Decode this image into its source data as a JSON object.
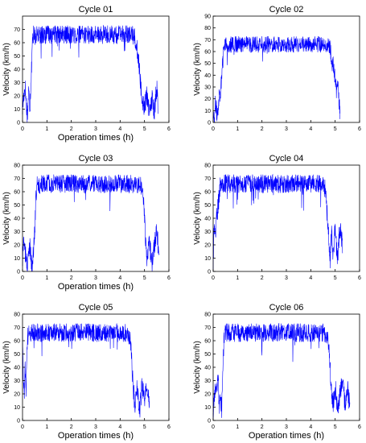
{
  "colors": {
    "line": "#0000ff",
    "axis": "#000000",
    "background": "#ffffff"
  },
  "chart_data": [
    {
      "type": "line",
      "title": "Cycle 01",
      "xlabel": "Operation times (h)",
      "ylabel": "Velocity (km/h)",
      "xlim": [
        0,
        6
      ],
      "ylim": [
        0,
        80
      ],
      "xticks": [
        0,
        1,
        2,
        3,
        4,
        5,
        6
      ],
      "yticks": [
        0,
        10,
        20,
        30,
        40,
        50,
        60,
        70
      ],
      "grid": false,
      "series": [
        {
          "values": [
            [
              0,
              10
            ],
            [
              0.05,
              20
            ],
            [
              0.1,
              28
            ],
            [
              0.15,
              15
            ],
            [
              0.2,
              5
            ],
            [
              0.25,
              24
            ],
            [
              0.3,
              12
            ],
            [
              0.35,
              32
            ],
            [
              0.4,
              60
            ],
            [
              0.45,
              66
            ],
            [
              0.5,
              65
            ],
            [
              0.7,
              66
            ],
            [
              1.0,
              66
            ],
            [
              1.5,
              66
            ],
            [
              2.0,
              66
            ],
            [
              2.5,
              66
            ],
            [
              3.0,
              66
            ],
            [
              3.5,
              66
            ],
            [
              4.0,
              66
            ],
            [
              4.5,
              66
            ],
            [
              4.6,
              64
            ],
            [
              4.7,
              55
            ],
            [
              4.75,
              46
            ],
            [
              4.8,
              38
            ],
            [
              4.85,
              26
            ],
            [
              4.9,
              18
            ],
            [
              5.0,
              12
            ],
            [
              5.1,
              22
            ],
            [
              5.2,
              5
            ],
            [
              5.3,
              18
            ],
            [
              5.4,
              8
            ],
            [
              5.5,
              26
            ],
            [
              5.55,
              14
            ]
          ]
        }
      ]
    },
    {
      "type": "line",
      "title": "Cycle 02",
      "xlabel": "",
      "ylabel": "Velocity (km/h)",
      "xlim": [
        0,
        6
      ],
      "ylim": [
        0,
        90
      ],
      "xticks": [
        0,
        1,
        2,
        3,
        4,
        5,
        6
      ],
      "yticks": [
        0,
        10,
        20,
        30,
        40,
        50,
        60,
        70,
        80,
        90
      ],
      "grid": false,
      "series": [
        {
          "values": [
            [
              0,
              8
            ],
            [
              0.05,
              3
            ],
            [
              0.1,
              18
            ],
            [
              0.15,
              6
            ],
            [
              0.2,
              12
            ],
            [
              0.25,
              26
            ],
            [
              0.3,
              24
            ],
            [
              0.35,
              40
            ],
            [
              0.4,
              58
            ],
            [
              0.45,
              65
            ],
            [
              0.5,
              66
            ],
            [
              1.0,
              66
            ],
            [
              1.5,
              66
            ],
            [
              2.0,
              66
            ],
            [
              2.5,
              66
            ],
            [
              3.0,
              66
            ],
            [
              3.5,
              66
            ],
            [
              4.0,
              66
            ],
            [
              4.5,
              66
            ],
            [
              4.8,
              64
            ],
            [
              4.85,
              52
            ],
            [
              4.9,
              50
            ],
            [
              4.95,
              44
            ],
            [
              5.0,
              40
            ],
            [
              5.05,
              28
            ],
            [
              5.1,
              32
            ],
            [
              5.15,
              20
            ],
            [
              5.2,
              6
            ]
          ]
        }
      ]
    },
    {
      "type": "line",
      "title": "Cycle 03",
      "xlabel": "Operation times (h)",
      "ylabel": "Velocity (km/h)",
      "xlim": [
        0,
        6
      ],
      "ylim": [
        0,
        80
      ],
      "xticks": [
        0,
        1,
        2,
        3,
        4,
        5,
        6
      ],
      "yticks": [
        0,
        10,
        20,
        30,
        40,
        50,
        60,
        70,
        80
      ],
      "grid": false,
      "series": [
        {
          "values": [
            [
              0,
              6
            ],
            [
              0.05,
              28
            ],
            [
              0.1,
              14
            ],
            [
              0.2,
              4
            ],
            [
              0.3,
              20
            ],
            [
              0.4,
              2
            ],
            [
              0.45,
              16
            ],
            [
              0.5,
              30
            ],
            [
              0.55,
              58
            ],
            [
              0.6,
              65
            ],
            [
              1.0,
              66
            ],
            [
              1.5,
              66
            ],
            [
              2.0,
              66
            ],
            [
              2.5,
              66
            ],
            [
              3.0,
              66
            ],
            [
              3.5,
              66
            ],
            [
              4.0,
              66
            ],
            [
              4.5,
              66
            ],
            [
              4.9,
              64
            ],
            [
              4.95,
              54
            ],
            [
              5.0,
              40
            ],
            [
              5.05,
              22
            ],
            [
              5.1,
              8
            ],
            [
              5.2,
              24
            ],
            [
              5.3,
              4
            ],
            [
              5.4,
              18
            ],
            [
              5.5,
              30
            ],
            [
              5.6,
              12
            ]
          ]
        }
      ]
    },
    {
      "type": "line",
      "title": "Cycle 04",
      "xlabel": "",
      "ylabel": "Velocity (km/h)",
      "xlim": [
        0,
        6
      ],
      "ylim": [
        0,
        80
      ],
      "xticks": [
        0,
        1,
        2,
        3,
        4,
        5,
        6
      ],
      "yticks": [
        0,
        10,
        20,
        30,
        40,
        50,
        60,
        70,
        80
      ],
      "grid": false,
      "series": [
        {
          "values": [
            [
              0,
              0
            ],
            [
              0.02,
              22
            ],
            [
              0.05,
              32
            ],
            [
              0.1,
              28
            ],
            [
              0.15,
              42
            ],
            [
              0.2,
              50
            ],
            [
              0.25,
              58
            ],
            [
              0.3,
              66
            ],
            [
              0.5,
              66
            ],
            [
              1.0,
              66
            ],
            [
              1.5,
              66
            ],
            [
              2.0,
              66
            ],
            [
              2.5,
              66
            ],
            [
              3.0,
              66
            ],
            [
              3.5,
              66
            ],
            [
              4.0,
              66
            ],
            [
              4.5,
              66
            ],
            [
              4.6,
              62
            ],
            [
              4.65,
              50
            ],
            [
              4.7,
              34
            ],
            [
              4.75,
              22
            ],
            [
              4.8,
              10
            ],
            [
              4.85,
              28
            ],
            [
              4.9,
              14
            ],
            [
              5.0,
              30
            ],
            [
              5.1,
              10
            ],
            [
              5.2,
              34
            ],
            [
              5.3,
              18
            ]
          ]
        }
      ]
    },
    {
      "type": "line",
      "title": "Cycle 05",
      "xlabel": "Operation times (h)",
      "ylabel": "Velocity (km/h)",
      "xlim": [
        0,
        6
      ],
      "ylim": [
        0,
        80
      ],
      "xticks": [
        0,
        1,
        2,
        3,
        4,
        5,
        6
      ],
      "yticks": [
        0,
        10,
        20,
        30,
        40,
        50,
        60,
        70,
        80
      ],
      "grid": false,
      "series": [
        {
          "values": [
            [
              0,
              70
            ],
            [
              0.02,
              40
            ],
            [
              0.05,
              28
            ],
            [
              0.08,
              18
            ],
            [
              0.1,
              44
            ],
            [
              0.15,
              24
            ],
            [
              0.18,
              52
            ],
            [
              0.2,
              62
            ],
            [
              0.25,
              66
            ],
            [
              0.5,
              66
            ],
            [
              1.0,
              66
            ],
            [
              1.5,
              66
            ],
            [
              2.0,
              66
            ],
            [
              2.5,
              66
            ],
            [
              3.0,
              66
            ],
            [
              3.5,
              66
            ],
            [
              4.0,
              66
            ],
            [
              4.3,
              66
            ],
            [
              4.4,
              62
            ],
            [
              4.45,
              52
            ],
            [
              4.5,
              36
            ],
            [
              4.55,
              22
            ],
            [
              4.6,
              10
            ],
            [
              4.7,
              24
            ],
            [
              4.8,
              6
            ],
            [
              4.9,
              28
            ],
            [
              5.0,
              12
            ],
            [
              5.1,
              30
            ],
            [
              5.2,
              14
            ]
          ]
        }
      ]
    },
    {
      "type": "line",
      "title": "Cycle 06",
      "xlabel": "Operation times (h)",
      "ylabel": "Velocity (km/h)",
      "xlim": [
        0,
        6
      ],
      "ylim": [
        0,
        80
      ],
      "xticks": [
        0,
        1,
        2,
        3,
        4,
        5,
        6
      ],
      "yticks": [
        0,
        10,
        20,
        30,
        40,
        50,
        60,
        70,
        80
      ],
      "grid": false,
      "series": [
        {
          "values": [
            [
              0,
              4
            ],
            [
              0.05,
              16
            ],
            [
              0.1,
              28
            ],
            [
              0.15,
              20
            ],
            [
              0.2,
              34
            ],
            [
              0.25,
              10
            ],
            [
              0.3,
              22
            ],
            [
              0.35,
              8
            ],
            [
              0.4,
              40
            ],
            [
              0.45,
              62
            ],
            [
              0.5,
              66
            ],
            [
              1.0,
              66
            ],
            [
              1.5,
              66
            ],
            [
              2.0,
              66
            ],
            [
              2.5,
              66
            ],
            [
              3.0,
              66
            ],
            [
              3.5,
              66
            ],
            [
              4.0,
              66
            ],
            [
              4.5,
              66
            ],
            [
              4.7,
              64
            ],
            [
              4.75,
              50
            ],
            [
              4.8,
              36
            ],
            [
              4.85,
              22
            ],
            [
              4.9,
              10
            ],
            [
              5.0,
              26
            ],
            [
              5.1,
              8
            ],
            [
              5.2,
              20
            ],
            [
              5.3,
              30
            ],
            [
              5.4,
              12
            ],
            [
              5.5,
              24
            ],
            [
              5.6,
              10
            ]
          ]
        }
      ]
    }
  ]
}
